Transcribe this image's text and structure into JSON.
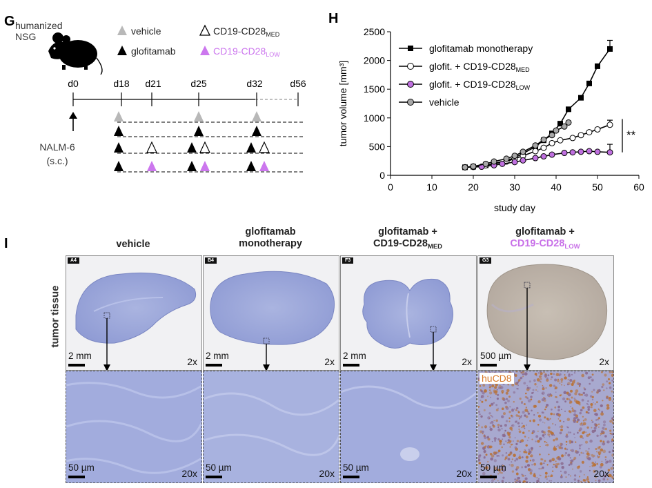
{
  "panel_labels": {
    "g": "G",
    "h": "H",
    "i": "I"
  },
  "schedule": {
    "mouse_label_line1": "humanized",
    "mouse_label_line2": "NSG",
    "legend": {
      "vehicle": "vehicle",
      "glofitamab": "glofitamab",
      "med_base": "CD19-CD28",
      "med_sub": "MED",
      "low_base": "CD19-CD28",
      "low_sub": "LOW"
    },
    "days": [
      "d0",
      "d18",
      "d21",
      "d25",
      "d32",
      "d56"
    ],
    "inoculation_line1": "NALM-6",
    "inoculation_line2": "(s.c.)",
    "colors": {
      "vehicle": "#b8b8b8",
      "glofitamab": "#000000",
      "low": "#cc77ee"
    }
  },
  "chart_data": {
    "type": "line",
    "xlabel": "study day",
    "ylabel": "tumor volume [mm³]",
    "xlim": [
      0,
      60
    ],
    "ylim": [
      0,
      2500
    ],
    "xticks": [
      0,
      10,
      20,
      30,
      40,
      50,
      60
    ],
    "yticks": [
      0,
      500,
      1000,
      1500,
      2000,
      2500
    ],
    "significance": "**",
    "series": [
      {
        "name": "glofitamab monotherapy",
        "color": "#000000",
        "fill": "#000000",
        "marker": "square",
        "x": [
          18,
          20,
          23,
          25,
          28,
          30,
          32,
          35,
          37,
          39,
          41,
          43,
          46,
          48,
          50,
          53
        ],
        "y": [
          140,
          150,
          175,
          210,
          255,
          310,
          380,
          500,
          610,
          730,
          900,
          1150,
          1350,
          1600,
          1900,
          2200
        ],
        "err": [
          0,
          0,
          0,
          0,
          0,
          0,
          0,
          0,
          0,
          0,
          0,
          0,
          0,
          0,
          0,
          150
        ]
      },
      {
        "name_base": "glofit. + CD19-CD28",
        "name_sub": "MED",
        "color": "#000000",
        "fill": "#ffffff",
        "marker": "circle",
        "x": [
          18,
          20,
          23,
          25,
          28,
          30,
          32,
          35,
          37,
          39,
          41,
          44,
          46,
          48,
          50,
          53
        ],
        "y": [
          140,
          155,
          175,
          200,
          240,
          290,
          340,
          420,
          480,
          560,
          610,
          650,
          700,
          750,
          800,
          880
        ],
        "err": [
          0,
          0,
          0,
          0,
          0,
          0,
          0,
          0,
          0,
          0,
          0,
          0,
          0,
          0,
          0,
          80
        ]
      },
      {
        "name_base": "glofit. + CD19-CD28",
        "name_sub": "LOW",
        "color": "#000000",
        "fill": "#c070e0",
        "marker": "circle",
        "x": [
          18,
          20,
          22,
          25,
          27,
          30,
          32,
          35,
          37,
          39,
          42,
          44,
          46,
          48,
          50,
          53
        ],
        "y": [
          140,
          145,
          150,
          175,
          200,
          230,
          260,
          300,
          330,
          360,
          390,
          400,
          410,
          420,
          410,
          400
        ],
        "err": [
          0,
          0,
          0,
          0,
          0,
          0,
          0,
          0,
          0,
          0,
          0,
          0,
          0,
          0,
          0,
          140
        ]
      },
      {
        "name": "vehicle",
        "color": "#000000",
        "fill": "#a8a8a8",
        "marker": "circle",
        "x": [
          18,
          20,
          23,
          25,
          28,
          30,
          32,
          35,
          37,
          39,
          40,
          42,
          43
        ],
        "y": [
          140,
          155,
          200,
          240,
          290,
          340,
          410,
          520,
          620,
          700,
          780,
          850,
          920
        ],
        "err": [
          0,
          0,
          0,
          0,
          0,
          0,
          0,
          0,
          0,
          0,
          0,
          0,
          0
        ]
      }
    ]
  },
  "histology": {
    "row_label": "tumor tissue",
    "columns": [
      {
        "title_line1": "vehicle",
        "title_line2": "",
        "title_line2_sub": "",
        "id": "A4",
        "top_scale": "2 mm",
        "top_mag": "2x",
        "bottom_scale": "50 µm",
        "bottom_mag": "20x"
      },
      {
        "title_line1": "glofitamab",
        "title_line2": "monotherapy",
        "title_line2_sub": "",
        "id": "B4",
        "top_scale": "2 mm",
        "top_mag": "2x",
        "bottom_scale": "50 µm",
        "bottom_mag": "20x"
      },
      {
        "title_line1": "glofitamab +",
        "title_line2": "CD19-CD28",
        "title_line2_sub": "MED",
        "id": "F3",
        "top_scale": "2 mm",
        "top_mag": "2x",
        "bottom_scale": "50 µm",
        "bottom_mag": "20x"
      },
      {
        "title_line1": "glofitamab +",
        "title_line2": "CD19-CD28",
        "title_line2_sub": "LOW",
        "id": "G3",
        "top_scale": "500 µm",
        "top_mag": "2x",
        "bottom_scale": "50 µm",
        "bottom_mag": "20x",
        "stain_label": "huCD8"
      }
    ]
  }
}
